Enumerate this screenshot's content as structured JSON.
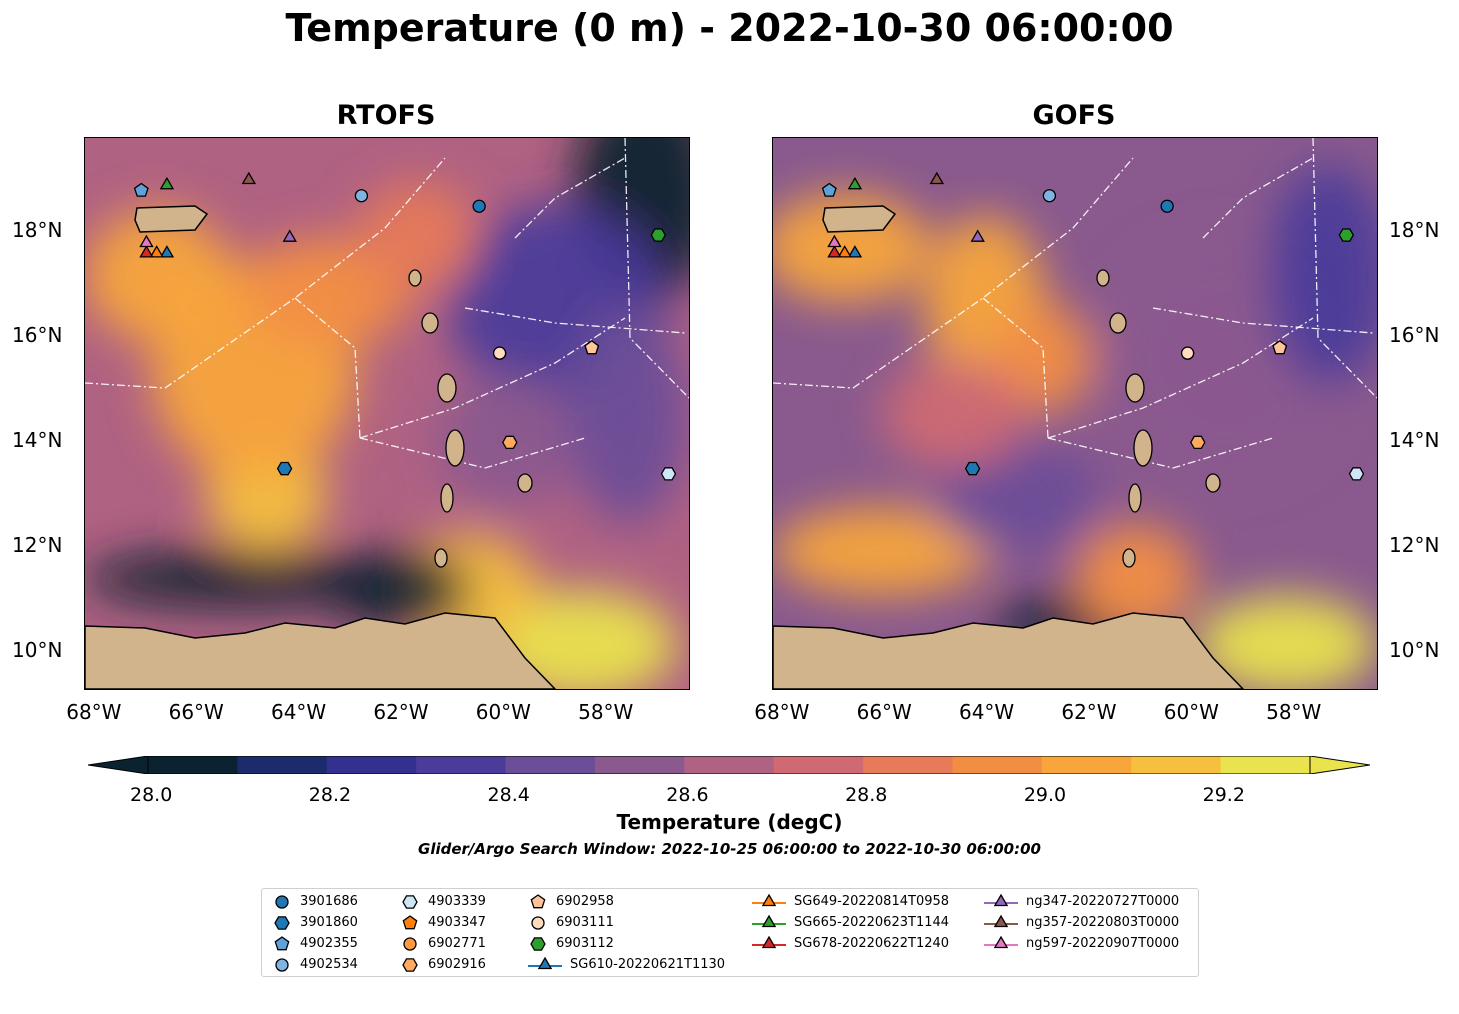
{
  "title": "Temperature (0 m) - 2022-10-30 06:00:00",
  "panels": [
    {
      "title": "RTOFS"
    },
    {
      "title": "GOFS"
    }
  ],
  "axis": {
    "x_ticks": [
      "68°W",
      "66°W",
      "64°W",
      "62°W",
      "60°W",
      "58°W"
    ],
    "y_ticks": [
      "18°N",
      "16°N",
      "14°N",
      "12°N",
      "10°N"
    ]
  },
  "colorbar": {
    "label": "Temperature (degC)",
    "ticks": [
      "28.0",
      "28.2",
      "28.4",
      "28.6",
      "28.8",
      "29.0",
      "29.2"
    ],
    "colors": [
      "#0b2230",
      "#1b2b6b",
      "#34308f",
      "#4b3b9a",
      "#6c4e98",
      "#8a5a8e",
      "#b06283",
      "#cf6a72",
      "#e67a59",
      "#f28e44",
      "#f8a53b",
      "#f6c03e",
      "#e9e34d"
    ]
  },
  "subtitle": "Glider/Argo Search Window: 2022-10-25 06:00:00 to 2022-10-30 06:00:00",
  "chart_data": {
    "type": "heatmap",
    "title": "Temperature (0 m) - 2022-10-30 06:00:00",
    "variable": "Temperature (degC)",
    "clim": [
      28.0,
      29.3
    ],
    "levels": [
      28.0,
      28.1,
      28.2,
      28.3,
      28.4,
      28.5,
      28.6,
      28.7,
      28.8,
      28.9,
      29.0,
      29.1,
      29.2,
      29.3
    ],
    "lon_range": [
      -68.2,
      -56.4
    ],
    "lat_range": [
      9.3,
      19.8
    ],
    "panels": [
      "RTOFS",
      "GOFS"
    ],
    "markers": [
      {
        "id": "3901686",
        "lon": -60.5,
        "lat": 18.5
      },
      {
        "id": "3901860",
        "lon": -64.3,
        "lat": 13.5
      },
      {
        "id": "4902355",
        "lon": -67.1,
        "lat": 18.8
      },
      {
        "id": "4902534",
        "lon": -62.8,
        "lat": 18.7
      },
      {
        "id": "4903339",
        "lon": -56.8,
        "lat": 13.4
      },
      {
        "id": "4903347",
        "lon": -58.3,
        "lat": 15.8
      },
      {
        "id": "6902771",
        "lon": -60.1,
        "lat": 15.7
      },
      {
        "id": "6902916",
        "lon": -59.9,
        "lat": 14.0
      },
      {
        "id": "6902958",
        "lon": -58.3,
        "lat": 15.8
      },
      {
        "id": "6903111",
        "lon": -60.1,
        "lat": 15.7
      },
      {
        "id": "6903112",
        "lon": -57.0,
        "lat": 17.95
      },
      {
        "id": "SG610-20220621T1130",
        "lon": -66.6,
        "lat": 17.6
      },
      {
        "id": "SG649-20220814T0958",
        "lon": -66.8,
        "lat": 17.6
      },
      {
        "id": "SG665-20220623T1144",
        "lon": -66.6,
        "lat": 18.9
      },
      {
        "id": "SG678-20220622T1240",
        "lon": -67.0,
        "lat": 17.6
      },
      {
        "id": "ng347-20220727T0000",
        "lon": -64.2,
        "lat": 17.9
      },
      {
        "id": "ng357-20220803T0000",
        "lon": -65.0,
        "lat": 19.0
      },
      {
        "id": "ng597-20220907T0000",
        "lon": -67.0,
        "lat": 17.8
      }
    ]
  },
  "legend": {
    "items": [
      {
        "label": "3901686",
        "shape": "circle",
        "color": "#1f77b4"
      },
      {
        "label": "3901860",
        "shape": "hexagon",
        "color": "#1f77b4"
      },
      {
        "label": "4902355",
        "shape": "pentagon",
        "color": "#5fa2d8"
      },
      {
        "label": "4902534",
        "shape": "circle",
        "color": "#7fb4e0"
      },
      {
        "label": "4903339",
        "shape": "hexagon",
        "color": "#cfe6f7"
      },
      {
        "label": "4903347",
        "shape": "pentagon",
        "color": "#ff7f0e"
      },
      {
        "label": "6902771",
        "shape": "circle",
        "color": "#ff9a40"
      },
      {
        "label": "6902916",
        "shape": "hexagon",
        "color": "#ffaa60"
      },
      {
        "label": "6902958",
        "shape": "pentagon",
        "color": "#ffc59a"
      },
      {
        "label": "6903111",
        "shape": "circle",
        "color": "#ffdcc0"
      },
      {
        "label": "6903112",
        "shape": "hexagon",
        "color": "#2ca02c"
      },
      {
        "label": "SG610-20220621T1130",
        "shape": "triangle-line",
        "color": "#1f77b4"
      },
      {
        "label": "SG649-20220814T0958",
        "shape": "triangle-line",
        "color": "#ff7f0e"
      },
      {
        "label": "SG665-20220623T1144",
        "shape": "triangle-line",
        "color": "#2ca02c"
      },
      {
        "label": "SG678-20220622T1240",
        "shape": "triangle-line",
        "color": "#d62728"
      },
      {
        "label": "ng347-20220727T0000",
        "shape": "triangle-line",
        "color": "#9467bd"
      },
      {
        "label": "ng357-20220803T0000",
        "shape": "triangle-line",
        "color": "#8c564b"
      },
      {
        "label": "ng597-20220907T0000",
        "shape": "triangle-line",
        "color": "#e377c2"
      }
    ]
  }
}
